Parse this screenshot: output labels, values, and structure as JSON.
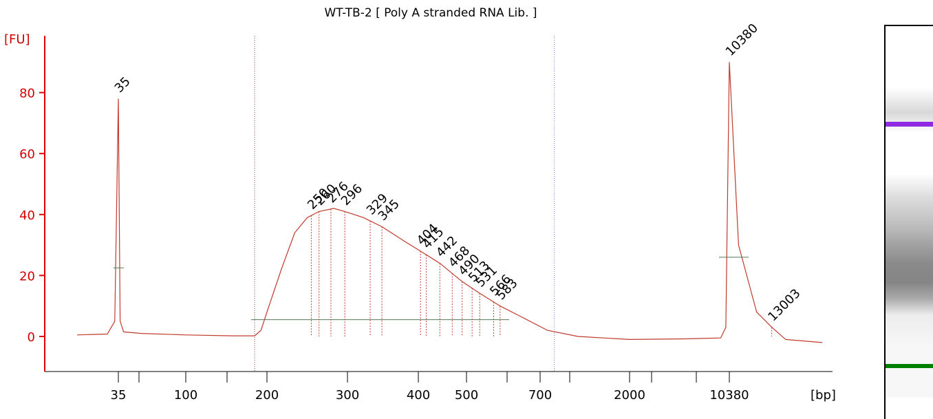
{
  "chart_data": {
    "type": "line",
    "title": "WT-TB-2  [ Poly A stranded RNA Lib.  ]",
    "ylabel": "[FU]",
    "xlabel": "[bp]",
    "ylim": [
      -12,
      100
    ],
    "yticks": [
      0,
      20,
      40,
      60,
      80
    ],
    "xticks": [
      "35",
      "100",
      "200",
      "300",
      "400",
      "500",
      "700",
      "2000",
      "10380"
    ],
    "series": [
      {
        "color": "#c0392b",
        "points": [
          [
            25,
            0.5
          ],
          [
            32,
            0.8
          ],
          [
            34,
            5
          ],
          [
            35,
            78
          ],
          [
            36,
            5
          ],
          [
            38,
            1.5
          ],
          [
            50,
            1.0
          ],
          [
            100,
            0.5
          ],
          [
            150,
            0.2
          ],
          [
            180,
            0.2
          ],
          [
            190,
            2
          ],
          [
            200,
            8
          ],
          [
            215,
            22
          ],
          [
            230,
            34
          ],
          [
            245,
            39
          ],
          [
            260,
            41
          ],
          [
            280,
            42
          ],
          [
            296,
            41
          ],
          [
            320,
            39
          ],
          [
            345,
            36
          ],
          [
            380,
            31
          ],
          [
            404,
            28
          ],
          [
            442,
            24
          ],
          [
            490,
            18
          ],
          [
            533,
            14
          ],
          [
            583,
            10
          ],
          [
            650,
            6
          ],
          [
            750,
            2
          ],
          [
            1000,
            0
          ],
          [
            2000,
            -1
          ],
          [
            5000,
            -0.8
          ],
          [
            9000,
            -0.5
          ],
          [
            9800,
            3
          ],
          [
            10380,
            90
          ],
          [
            10900,
            30
          ],
          [
            12000,
            8
          ],
          [
            13003,
            3
          ],
          [
            14000,
            -1
          ],
          [
            17000,
            -2
          ]
        ]
      }
    ],
    "peak_labels": [
      {
        "x": 35,
        "label": "35",
        "color": "#008000"
      },
      {
        "x": 10380,
        "label": "10380",
        "color": "#9933ff"
      },
      {
        "x": 250,
        "label": "250"
      },
      {
        "x": 260,
        "label": "260"
      },
      {
        "x": 276,
        "label": "276"
      },
      {
        "x": 296,
        "label": "296"
      },
      {
        "x": 329,
        "label": "329"
      },
      {
        "x": 345,
        "label": "345"
      },
      {
        "x": 404,
        "label": "404"
      },
      {
        "x": 415,
        "label": "415"
      },
      {
        "x": 442,
        "label": "442"
      },
      {
        "x": 468,
        "label": "468"
      },
      {
        "x": 490,
        "label": "490"
      },
      {
        "x": 513,
        "label": "513"
      },
      {
        "x": 531,
        "label": "531"
      },
      {
        "x": 566,
        "label": "566"
      },
      {
        "x": 583,
        "label": "583"
      },
      {
        "x": 13003,
        "label": "13003"
      }
    ],
    "region_markers": [
      180,
      800
    ],
    "grid": false
  },
  "gel": {
    "marker_colors": [
      "#8e2be2",
      "#008000"
    ]
  }
}
